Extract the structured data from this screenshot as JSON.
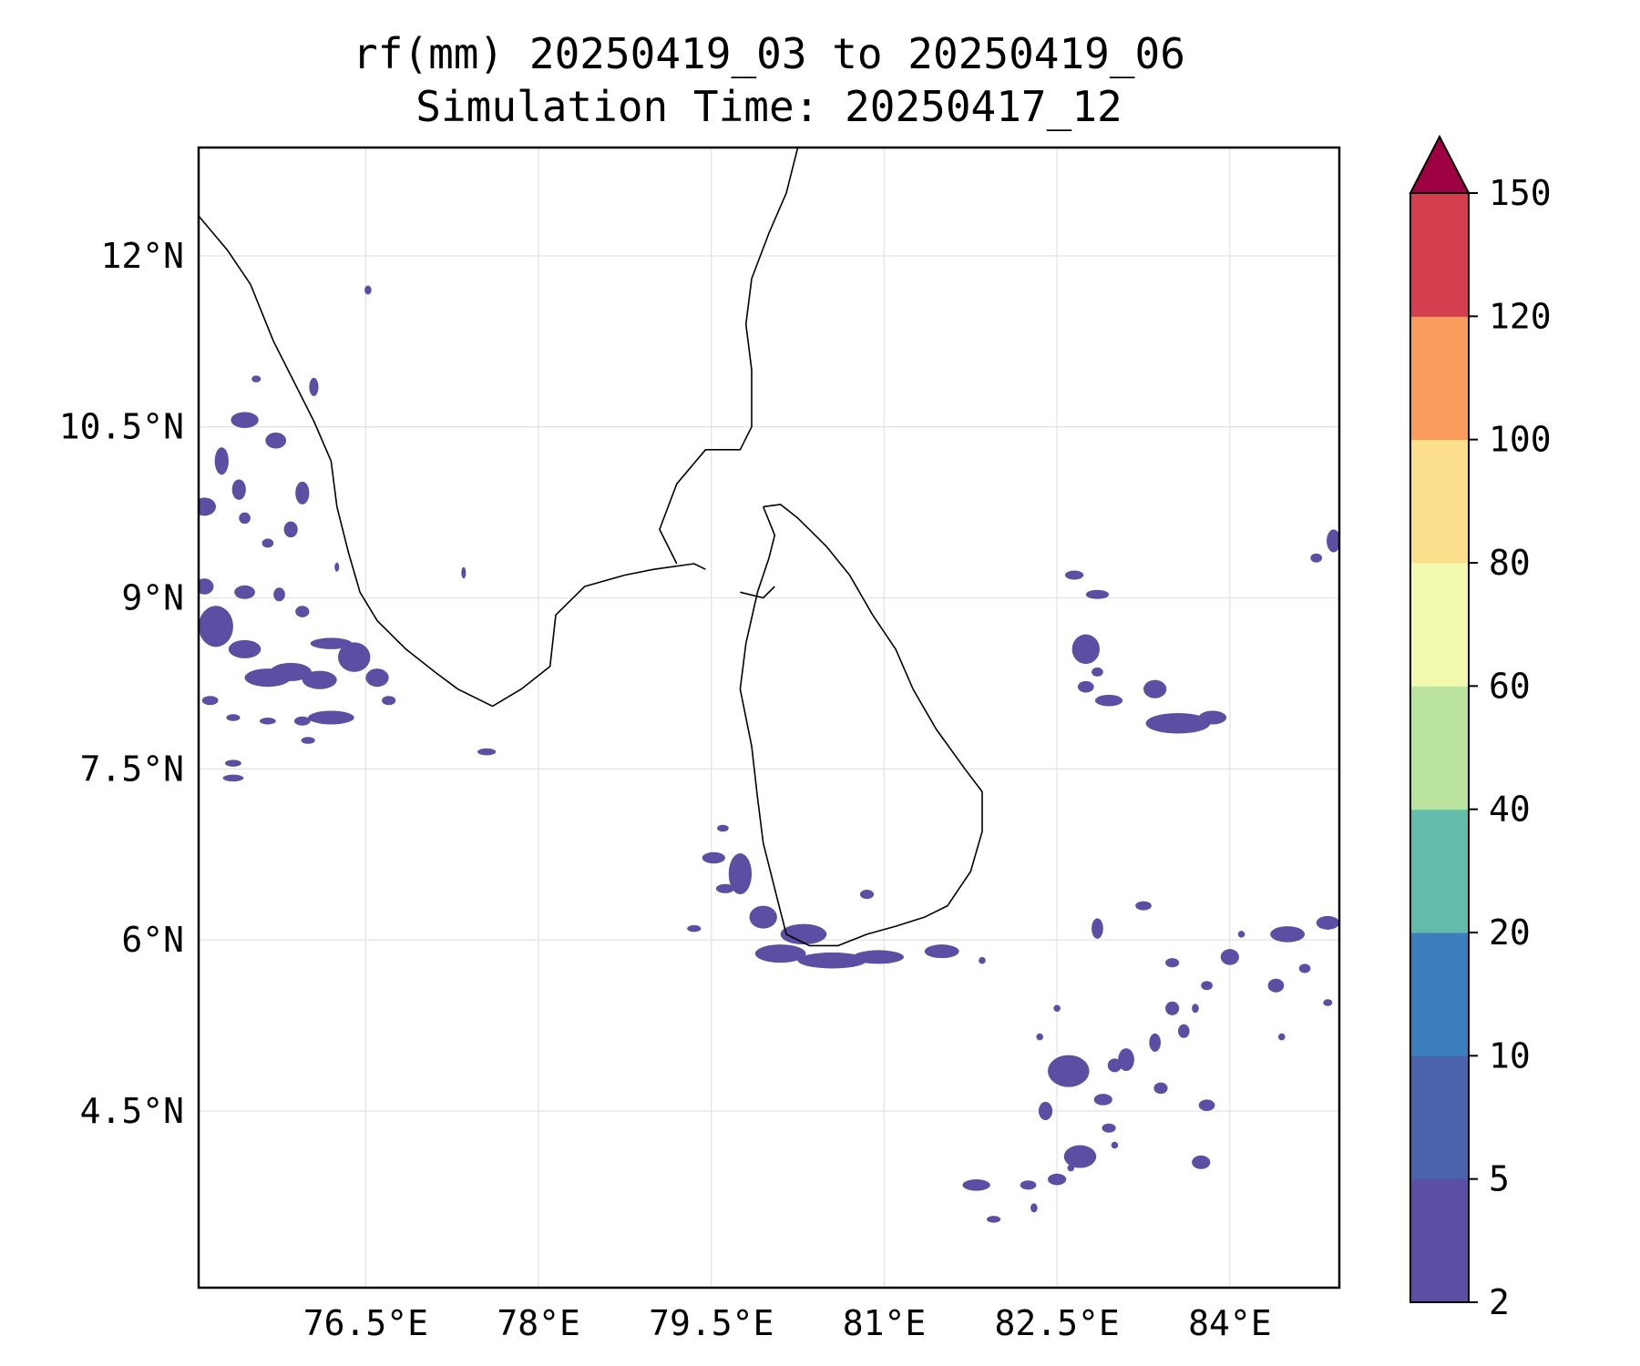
{
  "title": {
    "line1": "rf(mm) 20250419_03 to 20250419_06",
    "line2": "Simulation Time: 20250417_12"
  },
  "map": {
    "extent": {
      "lon_min": 75.05,
      "lon_max": 84.95,
      "lat_min": 2.95,
      "lat_max": 12.95
    },
    "gridlines": true,
    "lon_ticks": [
      {
        "value": 76.5,
        "label": "76.5°E"
      },
      {
        "value": 78.0,
        "label": "78°E"
      },
      {
        "value": 79.5,
        "label": "79.5°E"
      },
      {
        "value": 81.0,
        "label": "81°E"
      },
      {
        "value": 82.5,
        "label": "82.5°E"
      },
      {
        "value": 84.0,
        "label": "84°E"
      }
    ],
    "lat_ticks": [
      {
        "value": 12.0,
        "label": "12°N"
      },
      {
        "value": 10.5,
        "label": "10.5°N"
      },
      {
        "value": 9.0,
        "label": "9°N"
      },
      {
        "value": 7.5,
        "label": "7.5°N"
      },
      {
        "value": 6.0,
        "label": "6°N"
      },
      {
        "value": 4.5,
        "label": "4.5°N"
      }
    ]
  },
  "colorbar": {
    "levels": [
      "2",
      "5",
      "10",
      "20",
      "40",
      "60",
      "80",
      "100",
      "120",
      "150"
    ],
    "colors": [
      "#5b4ea3",
      "#4b62ad",
      "#3a7fbb",
      "#63bba9",
      "#bbe3a0",
      "#f3f9af",
      "#fbdf8c",
      "#f99c5c",
      "#d53e4f"
    ],
    "extend_color": "#9e0142",
    "extend": "max"
  },
  "rain_color": "#5b4ea3",
  "coastline": [
    {
      "name": "india-west-coast",
      "points": [
        [
          75.05,
          12.35
        ],
        [
          75.3,
          12.05
        ],
        [
          75.5,
          11.75
        ],
        [
          75.7,
          11.25
        ],
        [
          75.85,
          10.95
        ],
        [
          76.05,
          10.55
        ],
        [
          76.2,
          10.2
        ],
        [
          76.25,
          9.8
        ],
        [
          76.35,
          9.4
        ],
        [
          76.45,
          9.05
        ],
        [
          76.6,
          8.8
        ],
        [
          76.85,
          8.55
        ],
        [
          77.1,
          8.35
        ],
        [
          77.3,
          8.2
        ],
        [
          77.5,
          8.1
        ],
        [
          77.6,
          8.05
        ]
      ]
    },
    {
      "name": "india-south-east-coast",
      "points": [
        [
          77.6,
          8.05
        ],
        [
          77.85,
          8.2
        ],
        [
          78.1,
          8.4
        ],
        [
          78.15,
          8.85
        ],
        [
          78.4,
          9.1
        ],
        [
          78.75,
          9.2
        ],
        [
          79.0,
          9.25
        ],
        [
          79.35,
          9.3
        ],
        [
          79.45,
          9.25
        ]
      ]
    },
    {
      "name": "palk-bay-coast",
      "points": [
        [
          79.2,
          9.3
        ],
        [
          79.05,
          9.6
        ],
        [
          79.2,
          10.0
        ],
        [
          79.45,
          10.3
        ],
        [
          79.75,
          10.3
        ],
        [
          79.85,
          10.5
        ],
        [
          79.85,
          11.0
        ],
        [
          79.8,
          11.4
        ],
        [
          79.85,
          11.8
        ],
        [
          80.0,
          12.2
        ],
        [
          80.15,
          12.55
        ],
        [
          80.25,
          12.95
        ]
      ]
    },
    {
      "name": "sri-lanka",
      "points": [
        [
          79.95,
          9.8
        ],
        [
          80.1,
          9.82
        ],
        [
          80.25,
          9.7
        ],
        [
          80.5,
          9.45
        ],
        [
          80.7,
          9.2
        ],
        [
          80.9,
          8.85
        ],
        [
          81.1,
          8.55
        ],
        [
          81.25,
          8.2
        ],
        [
          81.45,
          7.85
        ],
        [
          81.7,
          7.5
        ],
        [
          81.85,
          7.3
        ],
        [
          81.85,
          6.95
        ],
        [
          81.75,
          6.6
        ],
        [
          81.55,
          6.3
        ],
        [
          81.35,
          6.2
        ],
        [
          81.1,
          6.12
        ],
        [
          80.85,
          6.05
        ],
        [
          80.6,
          5.95
        ],
        [
          80.35,
          5.95
        ],
        [
          80.15,
          6.05
        ],
        [
          80.05,
          6.45
        ],
        [
          79.95,
          6.85
        ],
        [
          79.9,
          7.25
        ],
        [
          79.85,
          7.7
        ],
        [
          79.75,
          8.2
        ],
        [
          79.8,
          8.6
        ],
        [
          79.9,
          9.05
        ],
        [
          80.0,
          9.35
        ],
        [
          80.05,
          9.55
        ],
        [
          79.95,
          9.8
        ]
      ]
    },
    {
      "name": "mannar-island",
      "points": [
        [
          79.75,
          9.05
        ],
        [
          79.95,
          9.0
        ],
        [
          80.05,
          9.1
        ]
      ]
    }
  ],
  "rain_blobs": [
    [
      75.45,
      10.56,
      0.12,
      0.07
    ],
    [
      75.72,
      10.38,
      0.09,
      0.07
    ],
    [
      75.25,
      10.2,
      0.06,
      0.12
    ],
    [
      75.4,
      9.95,
      0.06,
      0.09
    ],
    [
      75.1,
      9.8,
      0.1,
      0.08
    ],
    [
      75.95,
      9.92,
      0.06,
      0.1
    ],
    [
      75.85,
      9.6,
      0.06,
      0.07
    ],
    [
      75.45,
      9.7,
      0.05,
      0.05
    ],
    [
      75.65,
      9.48,
      0.05,
      0.04
    ],
    [
      75.1,
      9.1,
      0.08,
      0.07
    ],
    [
      75.45,
      9.05,
      0.09,
      0.06
    ],
    [
      75.75,
      9.03,
      0.05,
      0.06
    ],
    [
      75.95,
      8.88,
      0.06,
      0.05
    ],
    [
      75.2,
      8.75,
      0.15,
      0.18
    ],
    [
      75.45,
      8.55,
      0.14,
      0.08
    ],
    [
      75.85,
      8.35,
      0.18,
      0.08
    ],
    [
      76.1,
      8.28,
      0.15,
      0.08
    ],
    [
      76.4,
      8.48,
      0.14,
      0.13
    ],
    [
      76.6,
      8.3,
      0.1,
      0.08
    ],
    [
      76.2,
      8.6,
      0.18,
      0.05
    ],
    [
      75.65,
      8.3,
      0.2,
      0.08
    ],
    [
      75.15,
      8.1,
      0.07,
      0.04
    ],
    [
      76.2,
      7.95,
      0.2,
      0.06
    ],
    [
      75.95,
      7.92,
      0.07,
      0.04
    ],
    [
      75.35,
      7.95,
      0.06,
      0.03
    ],
    [
      75.65,
      7.92,
      0.07,
      0.03
    ],
    [
      76.0,
      7.75,
      0.06,
      0.03
    ],
    [
      75.35,
      7.55,
      0.07,
      0.03
    ],
    [
      75.35,
      7.42,
      0.09,
      0.03
    ],
    [
      76.7,
      8.1,
      0.06,
      0.04
    ],
    [
      77.55,
      7.65,
      0.08,
      0.03
    ],
    [
      76.05,
      10.85,
      0.04,
      0.08
    ],
    [
      75.55,
      10.92,
      0.04,
      0.03
    ],
    [
      76.52,
      11.7,
      0.03,
      0.04
    ],
    [
      77.35,
      9.22,
      0.02,
      0.05
    ],
    [
      76.25,
      9.27,
      0.02,
      0.04
    ],
    [
      79.6,
      6.98,
      0.05,
      0.03
    ],
    [
      79.52,
      6.72,
      0.1,
      0.05
    ],
    [
      79.75,
      6.58,
      0.1,
      0.18
    ],
    [
      79.62,
      6.45,
      0.08,
      0.04
    ],
    [
      79.95,
      6.2,
      0.12,
      0.1
    ],
    [
      80.3,
      6.05,
      0.2,
      0.09
    ],
    [
      80.1,
      5.88,
      0.22,
      0.08
    ],
    [
      80.55,
      5.82,
      0.3,
      0.07
    ],
    [
      80.95,
      5.85,
      0.22,
      0.06
    ],
    [
      81.5,
      5.9,
      0.15,
      0.06
    ],
    [
      80.85,
      6.4,
      0.06,
      0.04
    ],
    [
      79.35,
      6.1,
      0.06,
      0.03
    ],
    [
      81.85,
      5.82,
      0.03,
      0.03
    ],
    [
      82.65,
      9.2,
      0.08,
      0.04
    ],
    [
      82.85,
      9.03,
      0.1,
      0.04
    ],
    [
      82.75,
      8.55,
      0.12,
      0.13
    ],
    [
      82.85,
      8.35,
      0.05,
      0.04
    ],
    [
      82.75,
      8.22,
      0.07,
      0.05
    ],
    [
      82.95,
      8.1,
      0.12,
      0.05
    ],
    [
      83.35,
      8.2,
      0.1,
      0.08
    ],
    [
      83.55,
      7.9,
      0.28,
      0.09
    ],
    [
      83.85,
      7.95,
      0.12,
      0.06
    ],
    [
      84.9,
      9.5,
      0.06,
      0.1
    ],
    [
      84.75,
      9.35,
      0.05,
      0.04
    ],
    [
      84.85,
      6.15,
      0.1,
      0.06
    ],
    [
      84.5,
      6.05,
      0.15,
      0.07
    ],
    [
      84.4,
      5.6,
      0.07,
      0.06
    ],
    [
      84.65,
      5.75,
      0.05,
      0.04
    ],
    [
      84.0,
      5.85,
      0.08,
      0.07
    ],
    [
      83.8,
      5.6,
      0.05,
      0.04
    ],
    [
      83.5,
      5.4,
      0.06,
      0.06
    ],
    [
      83.35,
      5.1,
      0.05,
      0.08
    ],
    [
      83.6,
      5.2,
      0.05,
      0.06
    ],
    [
      83.1,
      4.95,
      0.07,
      0.1
    ],
    [
      83.0,
      4.9,
      0.06,
      0.06
    ],
    [
      82.6,
      4.85,
      0.18,
      0.14
    ],
    [
      82.4,
      4.5,
      0.06,
      0.08
    ],
    [
      82.9,
      4.6,
      0.08,
      0.05
    ],
    [
      83.4,
      4.7,
      0.06,
      0.05
    ],
    [
      83.8,
      4.55,
      0.07,
      0.05
    ],
    [
      83.75,
      4.05,
      0.08,
      0.06
    ],
    [
      82.7,
      4.1,
      0.14,
      0.1
    ],
    [
      82.95,
      4.35,
      0.06,
      0.04
    ],
    [
      82.5,
      3.9,
      0.08,
      0.05
    ],
    [
      82.25,
      3.85,
      0.07,
      0.04
    ],
    [
      81.8,
      3.85,
      0.12,
      0.05
    ],
    [
      81.95,
      3.55,
      0.06,
      0.03
    ],
    [
      82.3,
      3.65,
      0.03,
      0.04
    ],
    [
      82.62,
      4.0,
      0.03,
      0.03
    ],
    [
      83.0,
      4.2,
      0.03,
      0.03
    ],
    [
      84.85,
      5.45,
      0.04,
      0.03
    ],
    [
      84.45,
      5.15,
      0.03,
      0.03
    ],
    [
      82.85,
      6.1,
      0.05,
      0.09
    ],
    [
      83.25,
      6.3,
      0.07,
      0.04
    ],
    [
      83.5,
      5.8,
      0.06,
      0.04
    ],
    [
      83.7,
      5.4,
      0.03,
      0.04
    ],
    [
      84.1,
      6.05,
      0.03,
      0.03
    ],
    [
      82.5,
      5.4,
      0.03,
      0.03
    ],
    [
      82.35,
      5.15,
      0.03,
      0.03
    ]
  ]
}
